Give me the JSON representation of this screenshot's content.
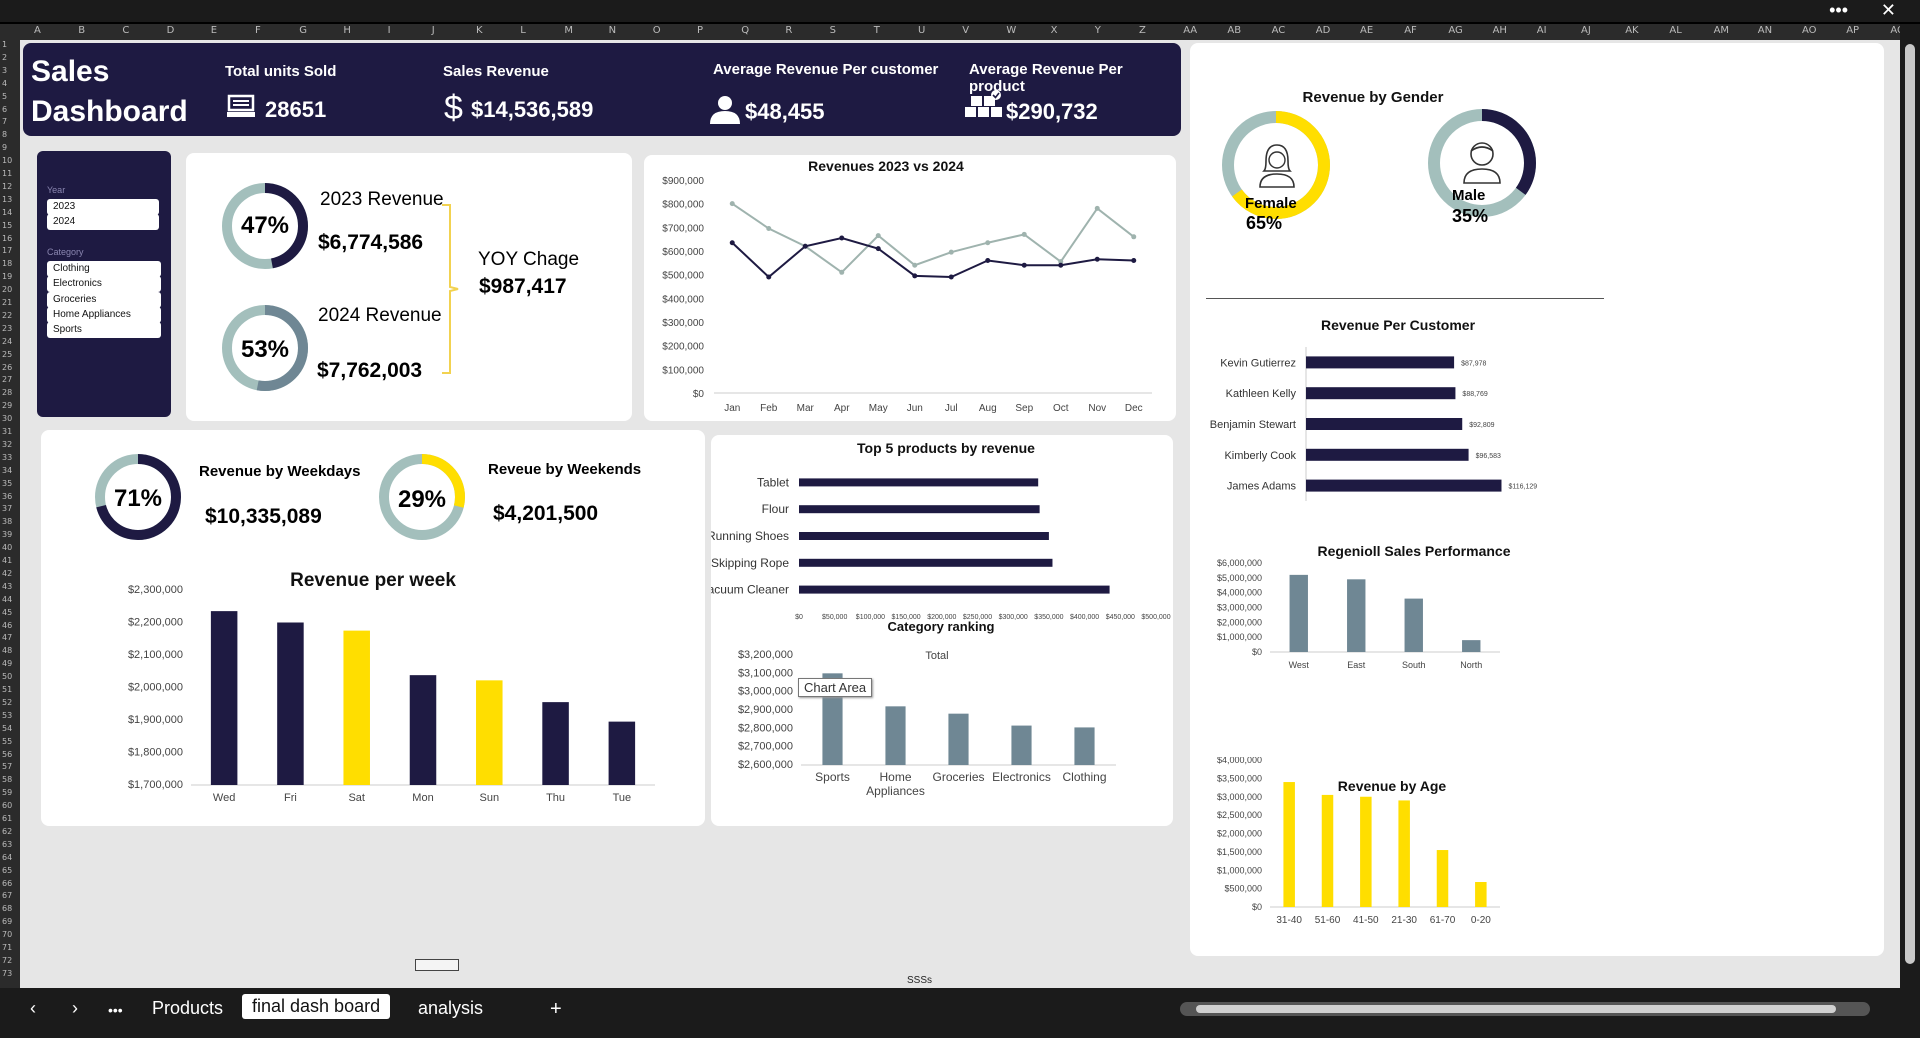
{
  "header": {
    "title_line1": "Sales",
    "title_line2": "Dashboard",
    "kpis": [
      {
        "label": "Total units Sold",
        "value": "28651",
        "icon": "register-icon"
      },
      {
        "label": "Sales Revenue",
        "value": "$14,536,589",
        "icon": "dollar-icon"
      },
      {
        "label": "Average Revenue Per customer",
        "value": "$48,455",
        "icon": "user-icon"
      },
      {
        "label": "Average Revenue Per product",
        "value": "$290,732",
        "icon": "boxes-icon"
      }
    ]
  },
  "columns": [
    "A",
    "B",
    "C",
    "D",
    "E",
    "F",
    "G",
    "H",
    "I",
    "J",
    "K",
    "L",
    "M",
    "N",
    "O",
    "P",
    "Q",
    "R",
    "S",
    "T",
    "U",
    "V",
    "W",
    "X",
    "Y",
    "Z",
    "AA",
    "AB",
    "AC",
    "AD",
    "AE",
    "AF",
    "AG",
    "AH",
    "AI",
    "AJ",
    "AK",
    "AL",
    "AM",
    "AN",
    "AO",
    "AP",
    "AQ"
  ],
  "slicers": {
    "year": {
      "title": "Year",
      "items": [
        "2023",
        "2024"
      ]
    },
    "category": {
      "title": "Category",
      "items": [
        "Clothing",
        "Electronics",
        "Groceries",
        "Home Appliances",
        "Sports"
      ]
    }
  },
  "revenue_compare": {
    "r2023": {
      "pct": "47%",
      "pct_value": 47,
      "label": "2023 Revenue",
      "value": "$6,774,586"
    },
    "r2024": {
      "pct": "53%",
      "pct_value": 53,
      "label": "2024 Revenue",
      "value": "$7,762,003"
    },
    "yoy_label": "YOY Chage",
    "yoy_value": "$987,417"
  },
  "weekday": {
    "weekdays": {
      "pct": "71%",
      "pct_value": 71,
      "label": "Revenue by Weekdays",
      "value": "$10,335,089"
    },
    "weekends": {
      "pct": "29%",
      "pct_value": 29,
      "label": "Reveue by Weekends",
      "value": "$4,201,500"
    }
  },
  "gender": {
    "title": "Revenue by Gender",
    "female": {
      "label": "Female",
      "pct": "65%",
      "pct_value": 65
    },
    "male": {
      "label": "Male",
      "pct": "35%",
      "pct_value": 35
    }
  },
  "tooltip": "Chart Area",
  "bottom_cell": "SSSs",
  "tabs": {
    "more": "•••",
    "products": "Products",
    "active": "final dash board",
    "analysis": "analysis",
    "add": "+"
  },
  "colors": {
    "navy": "#1e1a42",
    "yellow": "#ffde00",
    "sage": "#a3bfbc",
    "slate": "#6f8794",
    "slate_dark": "#6f8794"
  },
  "chart_data": [
    {
      "id": "rev_line",
      "type": "line",
      "title": "Revenues 2023 vs 2024",
      "categories": [
        "Jan",
        "Feb",
        "Mar",
        "Apr",
        "May",
        "Jun",
        "Jul",
        "Aug",
        "Sep",
        "Oct",
        "Nov",
        "Dec"
      ],
      "series": [
        {
          "name": "2023",
          "color": "#9fb3ae",
          "values": [
            800000,
            695000,
            620000,
            510000,
            665000,
            540000,
            595000,
            635000,
            670000,
            555000,
            780000,
            660000
          ]
        },
        {
          "name": "2024",
          "color": "#1e1a42",
          "values": [
            635000,
            490000,
            620000,
            655000,
            610000,
            495000,
            490000,
            560000,
            540000,
            540000,
            565000,
            560000
          ]
        }
      ],
      "ylim": [
        0,
        900000
      ],
      "yticks": [
        "$0",
        "$100,000",
        "$200,000",
        "$300,000",
        "$400,000",
        "$500,000",
        "$600,000",
        "$700,000",
        "$800,000",
        "$900,000"
      ]
    },
    {
      "id": "top_products",
      "type": "bar",
      "orientation": "horizontal",
      "title": "Top 5 products by revenue",
      "categories": [
        "Tablet",
        "Flour",
        "Running Shoes",
        "Skipping Rope",
        "Vacuum Cleaner"
      ],
      "values": [
        335000,
        337000,
        350000,
        355000,
        435000
      ],
      "xlim": [
        0,
        500000
      ],
      "xticks": [
        "$0",
        "$50,000",
        "$100,000",
        "$150,000",
        "$200,000",
        "$250,000",
        "$300,000",
        "$350,000",
        "$400,000",
        "$450,000",
        "$500,000"
      ],
      "color": "#1e1a42"
    },
    {
      "id": "category_rank",
      "type": "bar",
      "title": "Category ranking",
      "legend": "Total",
      "categories": [
        "Sports",
        "Home Appliances",
        "Groceries",
        "Electronics",
        "Clothing"
      ],
      "values": [
        3100000,
        2920000,
        2880000,
        2815000,
        2805000
      ],
      "ylim": [
        2600000,
        3200000
      ],
      "yticks": [
        "$2,600,000",
        "$2,700,000",
        "$2,800,000",
        "$2,900,000",
        "$3,000,000",
        "$3,100,000",
        "$3,200,000"
      ],
      "color": "#6f8794"
    },
    {
      "id": "rev_week",
      "type": "bar",
      "title": "Revenue per week",
      "categories": [
        "Wed",
        "Fri",
        "Sat",
        "Mon",
        "Sun",
        "Thu",
        "Tue"
      ],
      "values": [
        2235000,
        2200000,
        2175000,
        2038000,
        2022000,
        1955000,
        1895000
      ],
      "highlight": [
        false,
        false,
        true,
        false,
        true,
        false,
        false
      ],
      "ylim": [
        1700000,
        2300000
      ],
      "yticks": [
        "$1,700,000",
        "$1,800,000",
        "$1,900,000",
        "$2,000,000",
        "$2,100,000",
        "$2,200,000",
        "$2,300,000"
      ]
    },
    {
      "id": "rev_customer",
      "type": "bar",
      "orientation": "horizontal",
      "title": "Revenue Per Customer",
      "categories": [
        "Kevin Gutierrez",
        "Kathleen Kelly",
        "Benjamin Stewart",
        "Kimberly Cook",
        "James Adams"
      ],
      "values": [
        87978,
        88769,
        92809,
        96583,
        116129
      ],
      "labels": [
        "$87,978",
        "$88,769",
        "$92,809",
        "$96,583",
        "$116,129"
      ],
      "xlim": [
        0,
        120000
      ],
      "color": "#1e1a42"
    },
    {
      "id": "region",
      "type": "bar",
      "title": "Regenioll Sales Performance",
      "categories": [
        "West",
        "East",
        "South",
        "North"
      ],
      "values": [
        5200000,
        4900000,
        3600000,
        800000
      ],
      "ylim": [
        0,
        6000000
      ],
      "yticks": [
        "$0",
        "$1,000,000",
        "$2,000,000",
        "$3,000,000",
        "$4,000,000",
        "$5,000,000",
        "$6,000,000"
      ],
      "color": "#6f8794"
    },
    {
      "id": "age",
      "type": "bar",
      "title": "Revenue by Age",
      "categories": [
        "31-40",
        "51-60",
        "41-50",
        "21-30",
        "61-70",
        "0-20"
      ],
      "values": [
        3400000,
        3050000,
        3000000,
        2900000,
        1550000,
        680000
      ],
      "ylim": [
        0,
        4000000
      ],
      "yticks": [
        "$0",
        "$500,000",
        "$1,000,000",
        "$1,500,000",
        "$2,000,000",
        "$2,500,000",
        "$3,000,000",
        "$3,500,000",
        "$4,000,000"
      ],
      "color": "#ffde00"
    }
  ]
}
